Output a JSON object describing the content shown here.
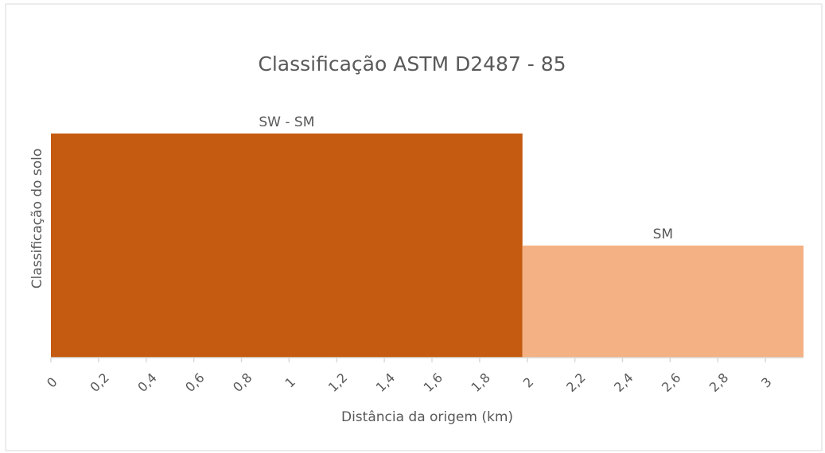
{
  "chart_data": {
    "type": "bar",
    "title": "Classificação ASTM D2487 - 85",
    "x_label": "Distância da origem (km)",
    "y_label": "Classificação do solo",
    "bars": [
      {
        "label": "SW - SM",
        "x": [
          0,
          1.98
        ],
        "value": 2,
        "color": "#c55a11"
      },
      {
        "label": "SM",
        "x": [
          1.98,
          3.16
        ],
        "value": 1,
        "color": "#f4b183"
      }
    ],
    "xlim": [
      0,
      3.16
    ],
    "xticks": [
      0,
      {
        "value": 0.2,
        "label": "0,2"
      },
      {
        "value": 0.4,
        "label": "0,4"
      },
      {
        "value": 0.6,
        "label": "0,6"
      },
      {
        "value": 0.8,
        "label": "0,8"
      },
      1,
      {
        "value": 1.2,
        "label": "1,2"
      },
      {
        "value": 1.4,
        "label": "1,4"
      },
      {
        "value": 1.6,
        "label": "1,6"
      },
      {
        "value": 1.8,
        "label": "1,8"
      },
      2,
      {
        "value": 2.2,
        "label": "2,2"
      },
      {
        "value": 2.4,
        "label": "2,4"
      },
      {
        "value": 2.6,
        "label": "2,6"
      },
      {
        "value": 2.8,
        "label": "2,8"
      },
      3
    ],
    "ylim": [
      0,
      2
    ]
  }
}
